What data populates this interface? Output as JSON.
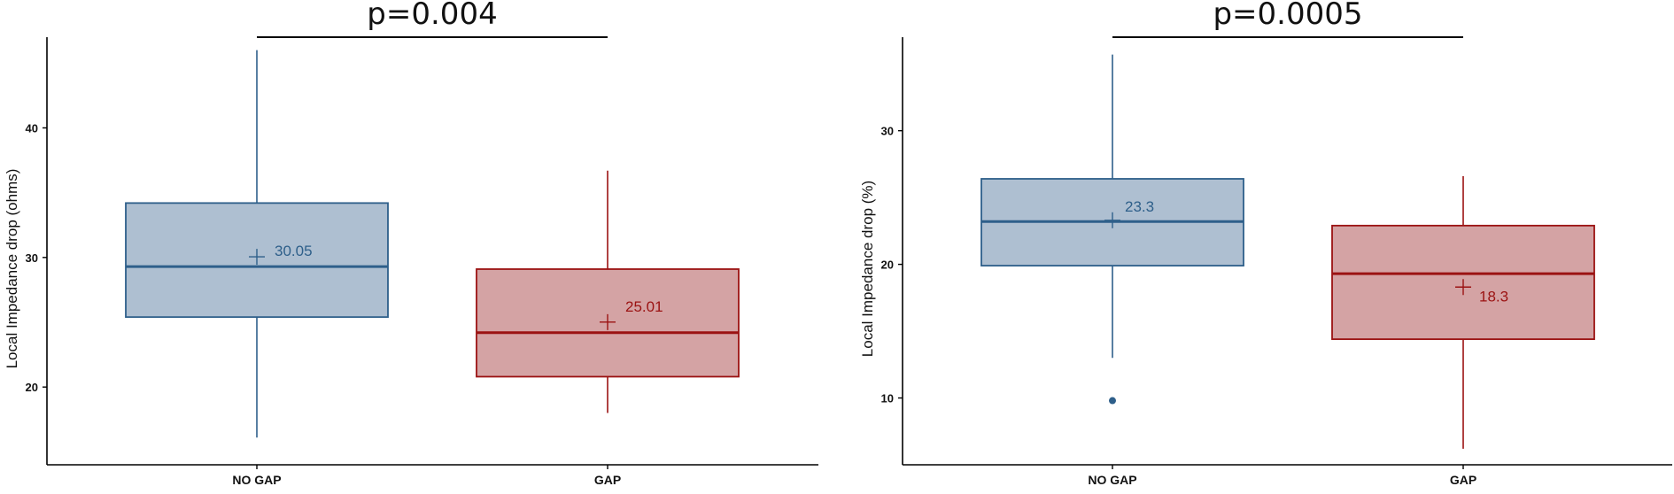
{
  "chart_data": [
    {
      "type": "box",
      "ylabel": "Local Impedance drop (ohms)",
      "xlabel": "",
      "ylim": [
        14,
        47
      ],
      "yticks": [
        20,
        30,
        40
      ],
      "categories": [
        "NO GAP",
        "GAP"
      ],
      "boxes": [
        {
          "category": "NO GAP",
          "whisker_low": 16.1,
          "q1": 25.4,
          "median": 29.3,
          "q3": 34.2,
          "whisker_high": 46.0,
          "mean": 30.05,
          "mean_label": "30.05",
          "outliers": [],
          "color": "#2e5f8a",
          "fill": "#aebfd1"
        },
        {
          "category": "GAP",
          "whisker_low": 18.0,
          "q1": 20.8,
          "median": 24.2,
          "q3": 29.1,
          "whisker_high": 36.7,
          "mean": 25.01,
          "mean_label": "25.01",
          "outliers": [],
          "color": "#9b1212",
          "fill": "#d4a3a4"
        }
      ],
      "annotation": {
        "text": "p=0.004"
      }
    },
    {
      "type": "box",
      "ylabel": "Local Impedance drop (%)",
      "xlabel": "",
      "ylim": [
        5,
        37
      ],
      "yticks": [
        10,
        20,
        30
      ],
      "categories": [
        "NO GAP",
        "GAP"
      ],
      "boxes": [
        {
          "category": "NO GAP",
          "whisker_low": 13.0,
          "q1": 19.9,
          "median": 23.2,
          "q3": 26.4,
          "whisker_high": 35.7,
          "mean": 23.3,
          "mean_label": "23.3",
          "outliers": [
            9.8
          ],
          "color": "#2e5f8a",
          "fill": "#aebfd1"
        },
        {
          "category": "GAP",
          "whisker_low": 6.2,
          "q1": 14.4,
          "median": 19.3,
          "q3": 22.9,
          "whisker_high": 26.6,
          "mean": 18.3,
          "mean_label": "18.3",
          "outliers": [],
          "color": "#9b1212",
          "fill": "#d4a3a4"
        }
      ],
      "annotation": {
        "text": "p=0.0005"
      }
    }
  ]
}
